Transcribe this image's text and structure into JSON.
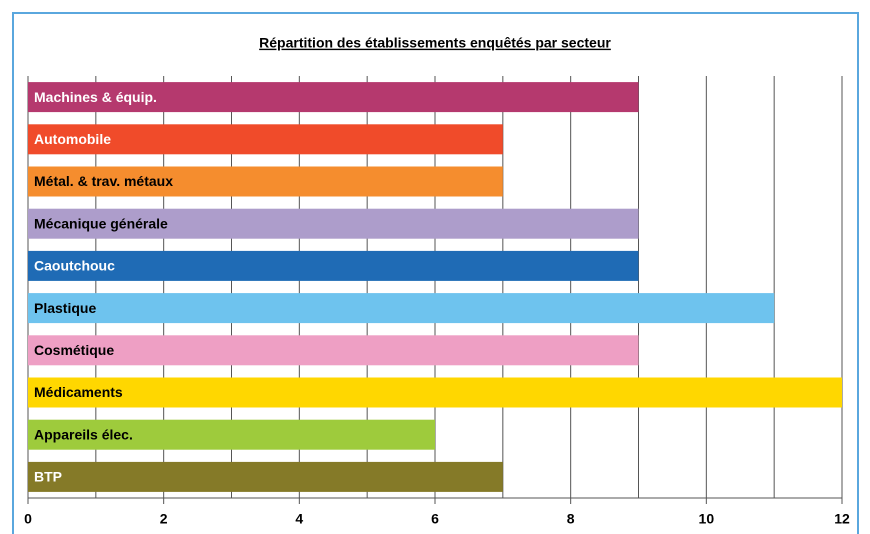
{
  "chart_data": {
    "type": "barh",
    "title": "Répartition des établissements enquêtés par secteur",
    "categories": [
      "Machines & équip.",
      "Automobile",
      "Métal. & trav. métaux",
      "Mécanique générale",
      "Caoutchouc",
      "Plastique",
      "Cosmétique",
      "Médicaments",
      "Appareils élec.",
      "BTP"
    ],
    "values": [
      9,
      7,
      7,
      9,
      9,
      11,
      9,
      12,
      6,
      7
    ],
    "colors": [
      "#b5396e",
      "#f04b2a",
      "#f58d2e",
      "#ad9dcb",
      "#1f6bb5",
      "#6ec3ee",
      "#ee9fc4",
      "#ffd700",
      "#9ecb3c",
      "#857a28"
    ],
    "label_colors": [
      "#ffffff",
      "#ffffff",
      "#000000",
      "#000000",
      "#ffffff",
      "#000000",
      "#000000",
      "#000000",
      "#000000",
      "#ffffff"
    ],
    "xlim": [
      0,
      12
    ],
    "xticks": [
      0,
      2,
      4,
      6,
      8,
      10,
      12
    ],
    "minor_xticks": [
      1,
      3,
      5,
      7,
      9,
      11
    ],
    "grid": true
  }
}
